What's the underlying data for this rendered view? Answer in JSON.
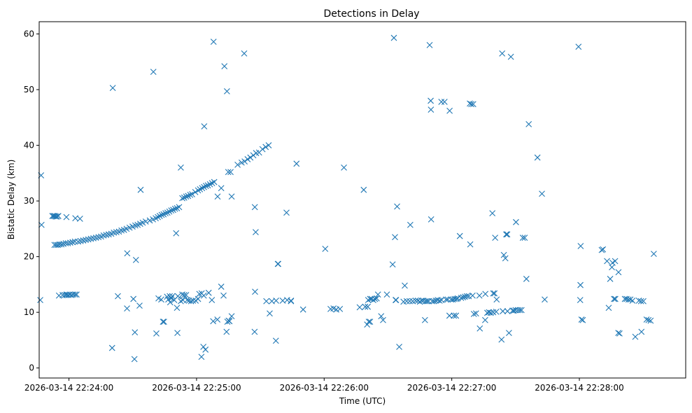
{
  "chart_data": {
    "type": "scatter",
    "title": "Detections in Delay",
    "xlabel": "Time (UTC)",
    "ylabel": "Bistatic Delay (km)",
    "x_unit": "seconds",
    "x_ticks": [
      {
        "t": 0,
        "label": "2026-03-14 22:24:00"
      },
      {
        "t": 60,
        "label": "2026-03-14 22:25:00"
      },
      {
        "t": 120,
        "label": "2026-03-14 22:26:00"
      },
      {
        "t": 180,
        "label": "2026-03-14 22:27:00"
      },
      {
        "t": 240,
        "label": "2026-03-14 22:28:00"
      }
    ],
    "xlim": [
      -14,
      290
    ],
    "ylim": [
      -1.8,
      62.2
    ],
    "y_ticks": [
      0,
      10,
      20,
      30,
      40,
      50,
      60
    ],
    "grid": false,
    "marker": "x",
    "color": "#1f77b4",
    "points": [
      [
        -13.5,
        12.2
      ],
      [
        -13.1,
        34.6
      ],
      [
        -12.9,
        25.7
      ],
      [
        -7.8,
        27.3
      ],
      [
        -7.2,
        27.3
      ],
      [
        -6.6,
        27.3
      ],
      [
        -6.2,
        27.2
      ],
      [
        -5.6,
        27.2
      ],
      [
        -5.0,
        27.3
      ],
      [
        -6.8,
        22.1
      ],
      [
        -6.0,
        22.1
      ],
      [
        -5.2,
        22.1
      ],
      [
        -4.4,
        22.2
      ],
      [
        -3.5,
        22.2
      ],
      [
        -2.6,
        22.3
      ],
      [
        -1.5,
        22.4
      ],
      [
        -0.5,
        22.4
      ],
      [
        0.6,
        22.5
      ],
      [
        1.7,
        22.6
      ],
      [
        2.8,
        22.7
      ],
      [
        -4.7,
        13.0
      ],
      [
        -3.0,
        13.1
      ],
      [
        -2.0,
        13.1
      ],
      [
        -1.2,
        13.1
      ],
      [
        -0.3,
        13.1
      ],
      [
        0.4,
        13.2
      ],
      [
        1.2,
        13.1
      ],
      [
        2.0,
        13.2
      ],
      [
        2.9,
        13.2
      ],
      [
        3.6,
        13.2
      ],
      [
        -1.2,
        27.1
      ],
      [
        3.0,
        26.9
      ],
      [
        5.2,
        26.8
      ],
      [
        4.3,
        22.7
      ],
      [
        5.5,
        22.8
      ],
      [
        6.7,
        22.9
      ],
      [
        7.9,
        23.0
      ],
      [
        9.1,
        23.1
      ],
      [
        10.3,
        23.2
      ],
      [
        11.5,
        23.3
      ],
      [
        12.7,
        23.4
      ],
      [
        13.9,
        23.5
      ],
      [
        15.1,
        23.6
      ],
      [
        16.3,
        23.8
      ],
      [
        17.5,
        23.9
      ],
      [
        18.7,
        24.0
      ],
      [
        19.9,
        24.1
      ],
      [
        21.1,
        24.3
      ],
      [
        22.3,
        24.4
      ],
      [
        23.5,
        24.5
      ],
      [
        24.7,
        24.7
      ],
      [
        25.9,
        24.8
      ],
      [
        27.1,
        25.0
      ],
      [
        28.5,
        25.2
      ],
      [
        29.9,
        25.4
      ],
      [
        31.2,
        25.6
      ],
      [
        32.3,
        25.7
      ],
      [
        33.5,
        25.9
      ],
      [
        34.7,
        26.1
      ],
      [
        36.1,
        26.3
      ],
      [
        38.0,
        26.5
      ],
      [
        39.5,
        26.7
      ],
      [
        40.8,
        26.9
      ],
      [
        41.8,
        27.1
      ],
      [
        42.7,
        27.3
      ],
      [
        43.6,
        27.5
      ],
      [
        44.5,
        27.6
      ],
      [
        45.4,
        27.8
      ],
      [
        46.3,
        27.9
      ],
      [
        47.2,
        28.1
      ],
      [
        48.1,
        28.3
      ],
      [
        49.0,
        28.4
      ],
      [
        49.9,
        28.6
      ],
      [
        50.8,
        28.7
      ],
      [
        51.8,
        28.9
      ],
      [
        53.3,
        30.5
      ],
      [
        54.2,
        30.6
      ],
      [
        55.1,
        30.8
      ],
      [
        56.0,
        30.9
      ],
      [
        57.0,
        31.1
      ],
      [
        57.9,
        31.2
      ],
      [
        59.4,
        31.6
      ],
      [
        60.7,
        31.9
      ],
      [
        61.6,
        32.1
      ],
      [
        62.6,
        32.3
      ],
      [
        63.5,
        32.5
      ],
      [
        64.4,
        32.7
      ],
      [
        65.3,
        32.8
      ],
      [
        66.3,
        33.0
      ],
      [
        67.3,
        33.2
      ],
      [
        68.3,
        33.4
      ],
      [
        71.6,
        32.3
      ],
      [
        69.9,
        30.8
      ],
      [
        74.9,
        35.2
      ],
      [
        76.0,
        35.2
      ],
      [
        79.3,
        36.5
      ],
      [
        81.2,
        36.9
      ],
      [
        82.6,
        37.1
      ],
      [
        84.0,
        37.5
      ],
      [
        85.3,
        37.8
      ],
      [
        86.7,
        38.2
      ],
      [
        88.0,
        38.6
      ],
      [
        89.4,
        38.7
      ],
      [
        91.0,
        39.3
      ],
      [
        92.5,
        39.7
      ],
      [
        93.9,
        40.0
      ],
      [
        -1.1,
        13.2
      ],
      [
        20.3,
        3.6
      ],
      [
        20.6,
        50.3
      ],
      [
        23.0,
        12.9
      ],
      [
        27.4,
        20.6
      ],
      [
        27.3,
        10.7
      ],
      [
        30.3,
        12.4
      ],
      [
        31.0,
        6.4
      ],
      [
        30.8,
        1.6
      ],
      [
        31.5,
        19.4
      ],
      [
        33.2,
        11.2
      ],
      [
        33.7,
        32.0
      ],
      [
        39.7,
        53.2
      ],
      [
        41.1,
        6.2
      ],
      [
        42.1,
        12.5
      ],
      [
        43.4,
        12.3
      ],
      [
        44.2,
        8.3
      ],
      [
        44.7,
        8.3
      ],
      [
        46.1,
        12.8
      ],
      [
        46.7,
        12.3
      ],
      [
        47.4,
        12.9
      ],
      [
        47.6,
        11.8
      ],
      [
        48.1,
        12.5
      ],
      [
        48.6,
        12.9
      ],
      [
        49.5,
        12.2
      ],
      [
        50.4,
        24.2
      ],
      [
        51.2,
        12.9
      ],
      [
        50.8,
        10.8
      ],
      [
        51.0,
        6.3
      ],
      [
        52.6,
        36.0
      ],
      [
        52.6,
        12.0
      ],
      [
        53.3,
        13.2
      ],
      [
        53.6,
        12.2
      ],
      [
        54.2,
        13.1
      ],
      [
        55.1,
        13.1
      ],
      [
        55.6,
        12.2
      ],
      [
        56.4,
        12.1
      ],
      [
        57.4,
        12.0
      ],
      [
        58.3,
        12.1
      ],
      [
        59.6,
        12.1
      ],
      [
        60.7,
        12.4
      ],
      [
        61.3,
        13.3
      ],
      [
        62.4,
        13.4
      ],
      [
        63.4,
        13.0
      ],
      [
        62.3,
        2.0
      ],
      [
        63.2,
        3.8
      ],
      [
        64.2,
        3.3
      ],
      [
        63.6,
        43.4
      ],
      [
        65.7,
        13.5
      ],
      [
        67.2,
        12.2
      ],
      [
        67.8,
        8.4
      ],
      [
        68.0,
        58.6
      ],
      [
        69.8,
        8.7
      ],
      [
        71.6,
        14.6
      ],
      [
        72.7,
        13.0
      ],
      [
        73.1,
        54.2
      ],
      [
        74.3,
        49.7
      ],
      [
        74.1,
        6.5
      ],
      [
        74.5,
        8.3
      ],
      [
        75.1,
        8.5
      ],
      [
        75.5,
        8.4
      ],
      [
        76.5,
        9.3
      ],
      [
        76.5,
        30.8
      ],
      [
        82.4,
        56.5
      ],
      [
        87.4,
        28.9
      ],
      [
        87.8,
        24.4
      ],
      [
        87.5,
        13.7
      ],
      [
        87.3,
        6.5
      ],
      [
        92.8,
        12.0
      ],
      [
        94.4,
        9.8
      ],
      [
        95.4,
        12.0
      ],
      [
        97.4,
        12.1
      ],
      [
        97.3,
        4.9
      ],
      [
        98.4,
        18.7
      ],
      [
        98.2,
        18.7
      ],
      [
        100.5,
        12.1
      ],
      [
        102.3,
        27.9
      ],
      [
        102.6,
        12.2
      ],
      [
        104.4,
        12.0
      ],
      [
        104.4,
        12.1
      ],
      [
        107.0,
        36.7
      ],
      [
        110.1,
        10.5
      ],
      [
        120.5,
        21.4
      ],
      [
        123.0,
        10.6
      ],
      [
        124.4,
        10.7
      ],
      [
        125.7,
        10.5
      ],
      [
        127.4,
        10.6
      ],
      [
        129.3,
        36.0
      ],
      [
        136.7,
        10.9
      ],
      [
        139.3,
        11.0
      ],
      [
        140.5,
        11.0
      ],
      [
        138.6,
        32.0
      ],
      [
        140.2,
        7.8
      ],
      [
        141.0,
        8.3
      ],
      [
        141.6,
        8.3
      ],
      [
        140.7,
        12.2
      ],
      [
        141.6,
        12.4
      ],
      [
        142.3,
        12.4
      ],
      [
        143.1,
        12.2
      ],
      [
        143.9,
        12.4
      ],
      [
        144.7,
        12.5
      ],
      [
        145.3,
        13.2
      ],
      [
        146.8,
        9.3
      ],
      [
        147.7,
        8.6
      ],
      [
        149.5,
        13.2
      ],
      [
        152.2,
        18.6
      ],
      [
        152.8,
        59.3
      ],
      [
        153.3,
        23.5
      ],
      [
        153.6,
        12.2
      ],
      [
        153.8,
        12.2
      ],
      [
        154.3,
        29.0
      ],
      [
        155.3,
        3.8
      ],
      [
        157.3,
        11.9
      ],
      [
        157.9,
        14.8
      ],
      [
        158.8,
        12.0
      ],
      [
        160.2,
        12.0
      ],
      [
        160.5,
        25.7
      ],
      [
        161.6,
        12.0
      ],
      [
        163.0,
        12.1
      ],
      [
        164.1,
        12.1
      ],
      [
        165.0,
        11.9
      ],
      [
        165.8,
        12.1
      ],
      [
        166.6,
        12.1
      ],
      [
        167.4,
        8.6
      ],
      [
        167.7,
        12.0
      ],
      [
        168.4,
        12.0
      ],
      [
        169.1,
        12.0
      ],
      [
        169.6,
        58.0
      ],
      [
        170.1,
        48.0
      ],
      [
        170.2,
        46.4
      ],
      [
        170.3,
        26.7
      ],
      [
        170.8,
        12.0
      ],
      [
        171.6,
        12.0
      ],
      [
        172.5,
        12.1
      ],
      [
        173.4,
        12.2
      ],
      [
        174.3,
        12.1
      ],
      [
        175.2,
        12.2
      ],
      [
        175.1,
        47.8
      ],
      [
        176.6,
        47.8
      ],
      [
        177.3,
        12.3
      ],
      [
        178.1,
        12.3
      ],
      [
        178.9,
        9.4
      ],
      [
        179.0,
        46.2
      ],
      [
        179.7,
        12.3
      ],
      [
        180.5,
        12.3
      ],
      [
        181.3,
        12.4
      ],
      [
        182.2,
        12.4
      ],
      [
        181.0,
        9.4
      ],
      [
        182.0,
        9.4
      ],
      [
        182.8,
        12.5
      ],
      [
        183.8,
        23.7
      ],
      [
        184.4,
        12.6
      ],
      [
        185.3,
        12.7
      ],
      [
        186.2,
        12.8
      ],
      [
        187.1,
        12.9
      ],
      [
        188.0,
        12.9
      ],
      [
        188.7,
        22.2
      ],
      [
        188.5,
        47.5
      ],
      [
        189.2,
        47.4
      ],
      [
        189.8,
        13.0
      ],
      [
        190.1,
        47.4
      ],
      [
        190.4,
        9.7
      ],
      [
        191.4,
        9.8
      ],
      [
        193.0,
        13.0
      ],
      [
        193.2,
        7.1
      ],
      [
        195.7,
        8.6
      ],
      [
        195.8,
        13.3
      ],
      [
        196.7,
        9.9
      ],
      [
        197.5,
        10.0
      ],
      [
        198.3,
        9.9
      ],
      [
        199.1,
        27.8
      ],
      [
        199.5,
        10.0
      ],
      [
        199.5,
        13.4
      ],
      [
        200.1,
        13.4
      ],
      [
        200.4,
        23.4
      ],
      [
        200.9,
        10.1
      ],
      [
        201.1,
        12.3
      ],
      [
        203.4,
        5.1
      ],
      [
        203.7,
        56.5
      ],
      [
        204.0,
        10.2
      ],
      [
        204.5,
        20.3
      ],
      [
        205.2,
        19.7
      ],
      [
        205.6,
        24.0
      ],
      [
        206.1,
        24.0
      ],
      [
        206.2,
        10.2
      ],
      [
        206.9,
        6.3
      ],
      [
        207.8,
        55.9
      ],
      [
        208.6,
        10.3
      ],
      [
        209.2,
        10.3
      ],
      [
        210.0,
        10.4
      ],
      [
        210.2,
        26.2
      ],
      [
        211.1,
        10.4
      ],
      [
        212.0,
        10.4
      ],
      [
        212.8,
        10.4
      ],
      [
        213.4,
        23.4
      ],
      [
        214.3,
        23.4
      ],
      [
        215.1,
        16.0
      ],
      [
        216.2,
        43.8
      ],
      [
        220.3,
        37.8
      ],
      [
        222.4,
        31.3
      ],
      [
        223.7,
        12.3
      ],
      [
        239.6,
        57.7
      ],
      [
        240.6,
        21.9
      ],
      [
        240.5,
        14.9
      ],
      [
        240.4,
        12.2
      ],
      [
        241.0,
        8.7
      ],
      [
        241.6,
        8.6
      ],
      [
        250.5,
        21.2
      ],
      [
        251.1,
        21.3
      ],
      [
        253.0,
        19.2
      ],
      [
        253.8,
        10.8
      ],
      [
        254.5,
        16.0
      ],
      [
        255.3,
        18.1
      ],
      [
        255.6,
        18.9
      ],
      [
        256.3,
        12.4
      ],
      [
        256.8,
        19.2
      ],
      [
        256.9,
        12.4
      ],
      [
        258.4,
        17.2
      ],
      [
        258.3,
        6.3
      ],
      [
        258.9,
        6.2
      ],
      [
        261.4,
        12.4
      ],
      [
        262.2,
        12.4
      ],
      [
        263.1,
        12.3
      ],
      [
        264.0,
        12.3
      ],
      [
        265.0,
        12.1
      ],
      [
        266.3,
        5.6
      ],
      [
        268.0,
        12.1
      ],
      [
        269.0,
        12.0
      ],
      [
        269.2,
        6.5
      ],
      [
        270.1,
        12.0
      ],
      [
        271.6,
        8.7
      ],
      [
        272.5,
        8.6
      ],
      [
        273.5,
        8.5
      ],
      [
        275.0,
        20.5
      ]
    ]
  }
}
